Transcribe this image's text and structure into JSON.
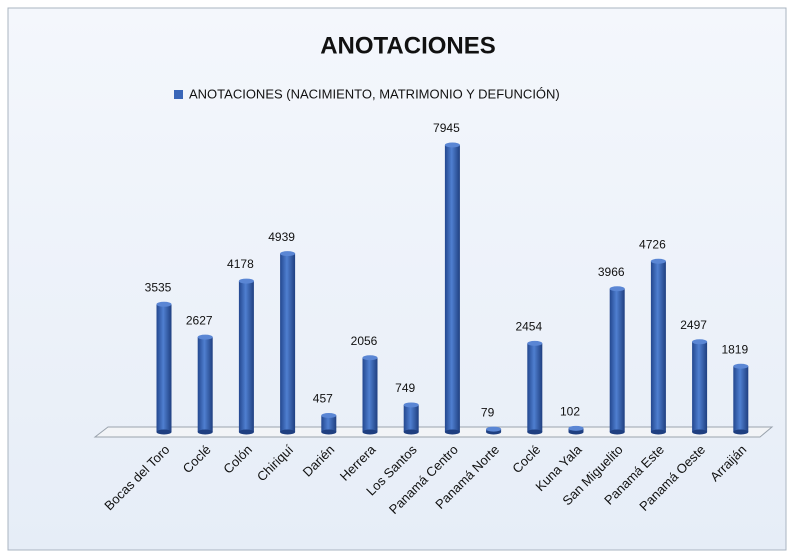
{
  "chart_data": {
    "type": "bar",
    "title": "ANOTACIONES",
    "legend": "ANOTACIONES   (NACIMIENTO, MATRIMONIO Y DEFUNCIÓN)",
    "categories": [
      "Bocas del Toro",
      "Coclé",
      "Colón",
      "Chiriquí",
      "Darién",
      "Herrera",
      "Los Santos",
      "Panamá Centro",
      "Panamá Norte",
      "Coclé",
      "Kuna Yala",
      "San Miguelito",
      "Panamá Este",
      "Panamá Oeste",
      "Arraiján"
    ],
    "values": [
      3535,
      2627,
      4178,
      4939,
      457,
      2056,
      749,
      7945,
      79,
      2454,
      102,
      3966,
      4726,
      2497,
      1819
    ],
    "color": "#3a66b8"
  }
}
